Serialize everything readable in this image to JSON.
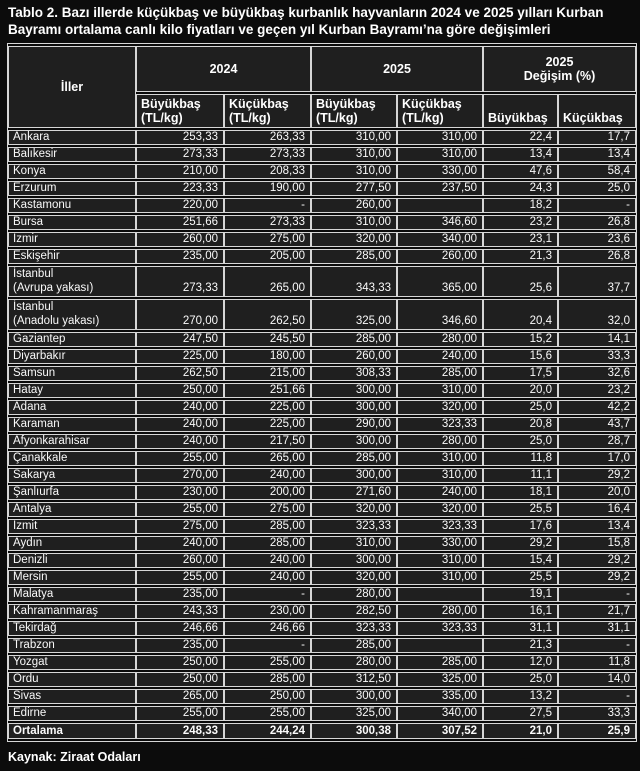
{
  "page": {
    "title": "Tablo 2. Bazı illerde küçükbaş ve büyükbaş kurbanlık hayvanların 2024 ve 2025 yılları Kurban Bayramı ortalama canlı kilo fiyatları ve geçen yıl Kurban Bayramı’na göre değişimleri",
    "source": "Kaynak: Ziraat Odaları"
  },
  "colors": {
    "page_background": "#0c0c0c",
    "cell_background": "#1f1f1f",
    "border": "#d6d6d6",
    "text": "#fafafa"
  },
  "table": {
    "header": {
      "iller": "İller",
      "group_2024": "2024",
      "group_2025": "2025",
      "group_change": "2025\nDeğişim (%)",
      "sub_buyukbas_tl": "Büyükbaş\n(TL/kg)",
      "sub_kucukbas_tl": "Küçükbaş\n(TL/kg)",
      "sub_buyukbas": "Büyükbaş",
      "sub_kucukbas": "Küçükbaş"
    },
    "column_keys": [
      "buyukbas-2024",
      "kucukbas-2024",
      "buyukbas-2025",
      "kucukbas-2025",
      "change-buyukbas",
      "change-kucukbas"
    ],
    "rows": [
      {
        "name": "Ankara",
        "values": [
          "253,33",
          "263,33",
          "310,00",
          "310,00",
          "22,4",
          "17,7"
        ]
      },
      {
        "name": "Balıkesir",
        "values": [
          "273,33",
          "273,33",
          "310,00",
          "310,00",
          "13,4",
          "13,4"
        ]
      },
      {
        "name": "Konya",
        "values": [
          "210,00",
          "208,33",
          "310,00",
          "330,00",
          "47,6",
          "58,4"
        ]
      },
      {
        "name": "Erzurum",
        "values": [
          "223,33",
          "190,00",
          "277,50",
          "237,50",
          "24,3",
          "25,0"
        ]
      },
      {
        "name": "Kastamonu",
        "values": [
          "220,00",
          "-",
          "260,00",
          "",
          "18,2",
          "-"
        ]
      },
      {
        "name": "Bursa",
        "values": [
          "251,66",
          "273,33",
          "310,00",
          "346,60",
          "23,2",
          "26,8"
        ]
      },
      {
        "name": "İzmir",
        "values": [
          "260,00",
          "275,00",
          "320,00",
          "340,00",
          "23,1",
          "23,6"
        ]
      },
      {
        "name": "Eskişehir",
        "values": [
          "235,00",
          "205,00",
          "285,00",
          "260,00",
          "21,3",
          "26,8"
        ]
      },
      {
        "name": "İstanbul\n(Avrupa yakası)",
        "values": [
          "273,33",
          "265,00",
          "343,33",
          "365,00",
          "25,6",
          "37,7"
        ]
      },
      {
        "name": "İstanbul\n(Anadolu yakası)",
        "values": [
          "270,00",
          "262,50",
          "325,00",
          "346,60",
          "20,4",
          "32,0"
        ]
      },
      {
        "name": "Gaziantep",
        "values": [
          "247,50",
          "245,50",
          "285,00",
          "280,00",
          "15,2",
          "14,1"
        ]
      },
      {
        "name": "Diyarbakır",
        "values": [
          "225,00",
          "180,00",
          "260,00",
          "240,00",
          "15,6",
          "33,3"
        ]
      },
      {
        "name": "Samsun",
        "values": [
          "262,50",
          "215,00",
          "308,33",
          "285,00",
          "17,5",
          "32,6"
        ]
      },
      {
        "name": "Hatay",
        "values": [
          "250,00",
          "251,66",
          "300,00",
          "310,00",
          "20,0",
          "23,2"
        ]
      },
      {
        "name": "Adana",
        "values": [
          "240,00",
          "225,00",
          "300,00",
          "320,00",
          "25,0",
          "42,2"
        ]
      },
      {
        "name": "Karaman",
        "values": [
          "240,00",
          "225,00",
          "290,00",
          "323,33",
          "20,8",
          "43,7"
        ]
      },
      {
        "name": "Afyonkarahisar",
        "values": [
          "240,00",
          "217,50",
          "300,00",
          "280,00",
          "25,0",
          "28,7"
        ]
      },
      {
        "name": "Çanakkale",
        "values": [
          "255,00",
          "265,00",
          "285,00",
          "310,00",
          "11,8",
          "17,0"
        ]
      },
      {
        "name": "Sakarya",
        "values": [
          "270,00",
          "240,00",
          "300,00",
          "310,00",
          "11,1",
          "29,2"
        ]
      },
      {
        "name": "Şanlıurfa",
        "values": [
          "230,00",
          "200,00",
          "271,60",
          "240,00",
          "18,1",
          "20,0"
        ]
      },
      {
        "name": "Antalya",
        "values": [
          "255,00",
          "275,00",
          "320,00",
          "320,00",
          "25,5",
          "16,4"
        ]
      },
      {
        "name": "İzmit",
        "values": [
          "275,00",
          "285,00",
          "323,33",
          "323,33",
          "17,6",
          "13,4"
        ]
      },
      {
        "name": "Aydın",
        "values": [
          "240,00",
          "285,00",
          "310,00",
          "330,00",
          "29,2",
          "15,8"
        ]
      },
      {
        "name": "Denizli",
        "values": [
          "260,00",
          "240,00",
          "300,00",
          "310,00",
          "15,4",
          "29,2"
        ]
      },
      {
        "name": "Mersin",
        "values": [
          "255,00",
          "240,00",
          "320,00",
          "310,00",
          "25,5",
          "29,2"
        ]
      },
      {
        "name": "Malatya",
        "values": [
          "235,00",
          "-",
          "280,00",
          "",
          "19,1",
          "-"
        ]
      },
      {
        "name": "Kahramanmaraş",
        "values": [
          "243,33",
          "230,00",
          "282,50",
          "280,00",
          "16,1",
          "21,7"
        ]
      },
      {
        "name": "Tekirdağ",
        "values": [
          "246,66",
          "246,66",
          "323,33",
          "323,33",
          "31,1",
          "31,1"
        ]
      },
      {
        "name": "Trabzon",
        "values": [
          "235,00",
          "-",
          "285,00",
          "",
          "21,3",
          "-"
        ]
      },
      {
        "name": "Yozgat",
        "values": [
          "250,00",
          "255,00",
          "280,00",
          "285,00",
          "12,0",
          "11,8"
        ]
      },
      {
        "name": "Ordu",
        "values": [
          "250,00",
          "285,00",
          "312,50",
          "325,00",
          "25,0",
          "14,0"
        ]
      },
      {
        "name": "Sivas",
        "values": [
          "265,00",
          "250,00",
          "300,00",
          "335,00",
          "13,2",
          "-"
        ]
      },
      {
        "name": "Edirne",
        "values": [
          "255,00",
          "255,00",
          "325,00",
          "340,00",
          "27,5",
          "33,3"
        ]
      }
    ],
    "total_row": {
      "name": "Ortalama",
      "values": [
        "248,33",
        "244,24",
        "300,38",
        "307,52",
        "21,0",
        "25,9"
      ]
    }
  }
}
